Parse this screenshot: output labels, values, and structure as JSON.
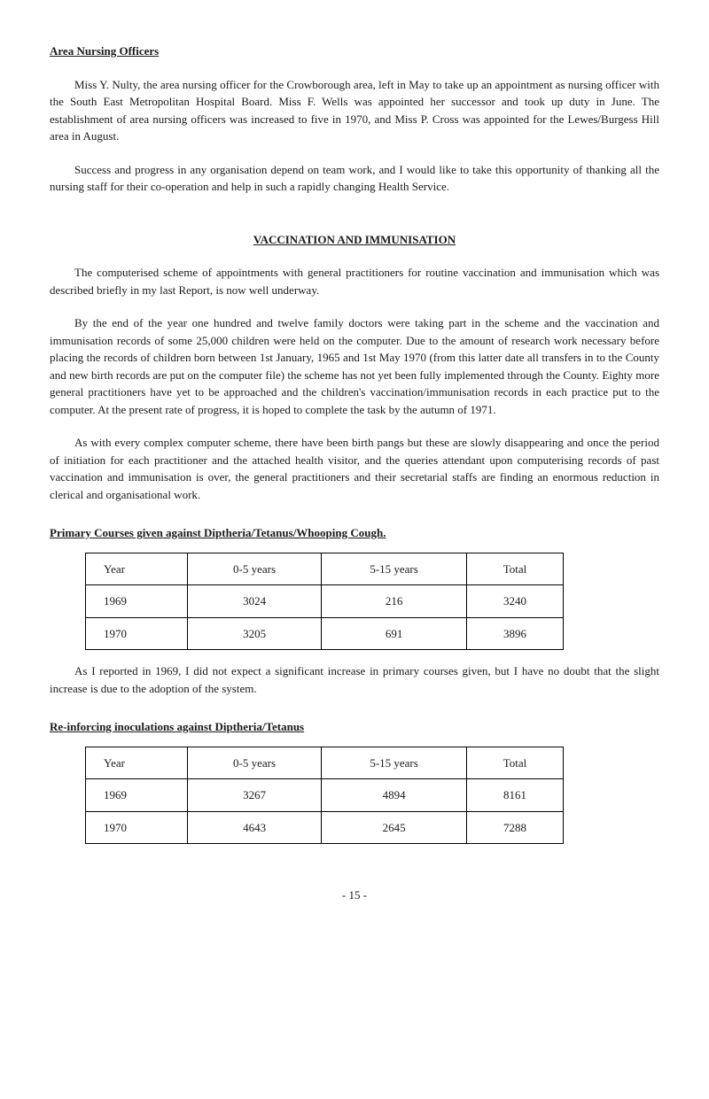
{
  "section1": {
    "heading": "Area Nursing Officers",
    "p1": "Miss Y. Nulty, the area nursing officer for the Crowborough area, left in May to take up an appointment as nursing officer with the South East Metropolitan Hospital Board. Miss F. Wells was appointed her successor and took up duty in June. The establishment of area nursing officers was increased to five in 1970, and Miss P. Cross was appointed for the Lewes/Burgess Hill area in August.",
    "p2": "Success and progress in any organisation depend on team work, and I would like to take this opportunity of thanking all the nursing staff for their co-operation and help in such a rapidly changing Health Service."
  },
  "section2": {
    "heading": "VACCINATION AND IMMUNISATION",
    "p1": "The computerised scheme of appointments with general practitioners for routine vaccination and immunisation which was described briefly in my last Report, is now well underway.",
    "p2": "By the end of the year one hundred and twelve family doctors were taking part in the scheme and the vaccination and immunisation records of some 25,000 children were held on the computer. Due to the amount of research work necessary before placing the records of children born between 1st January, 1965 and 1st May 1970 (from this latter date all transfers in to the County and new birth records are put on the computer file) the scheme has not yet been fully implemented through the County. Eighty more general practitioners have yet to be approached and the children's vaccination/immunisation records in each practice put to the computer. At the present rate of progress, it is hoped to complete the task by the autumn of 1971.",
    "p3": "As with every complex computer scheme, there have been birth pangs but these are slowly disappearing and once the period of initiation for each practitioner and the attached health visitor, and the queries attendant upon computerising records of past vaccination and immunisation is over, the general practitioners and their secretarial staffs are finding an enormous reduction in clerical and organisational work."
  },
  "table1": {
    "heading": "Primary Courses given against Diptheria/Tetanus/Whooping Cough.",
    "columns": [
      "Year",
      "0-5 years",
      "5-15 years",
      "Total"
    ],
    "rows": [
      [
        "1969",
        "3024",
        "216",
        "3240"
      ],
      [
        "1970",
        "3205",
        "691",
        "3896"
      ]
    ]
  },
  "note1": "As I reported in 1969, I did not expect a significant increase in primary courses given, but I have no doubt that the slight increase is due to the adoption of the system.",
  "table2": {
    "heading": "Re-inforcing inoculations against Diptheria/Tetanus",
    "columns": [
      "Year",
      "0-5 years",
      "5-15 years",
      "Total"
    ],
    "rows": [
      [
        "1969",
        "3267",
        "4894",
        "8161"
      ],
      [
        "1970",
        "4643",
        "2645",
        "7288"
      ]
    ]
  },
  "pageNumber": "- 15 -"
}
